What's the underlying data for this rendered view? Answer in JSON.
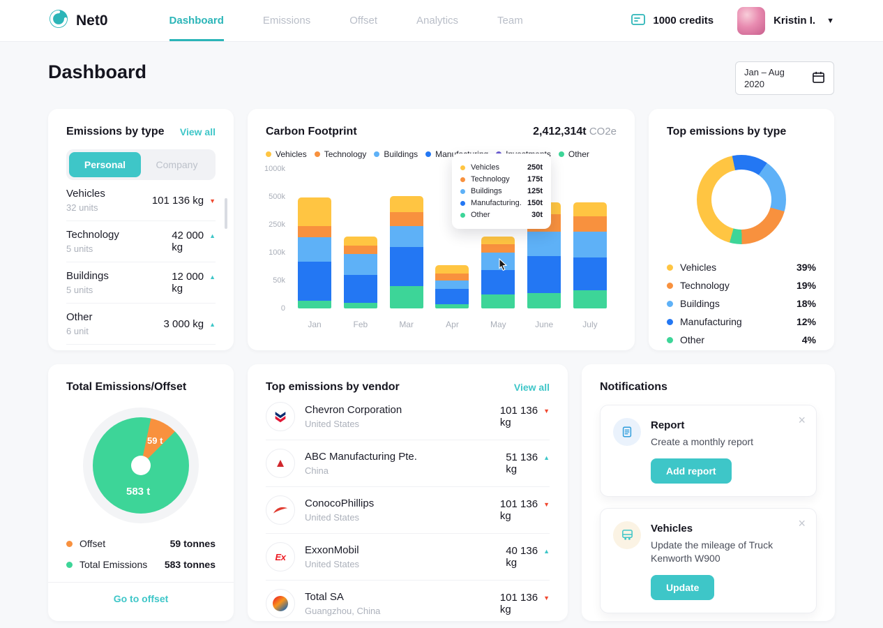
{
  "theme": {
    "accent": "#3EC6C8",
    "yellow": "#FFC542",
    "orange": "#F8913E",
    "light_blue": "#5EB1F7",
    "blue": "#2377F3",
    "green": "#3DD598",
    "red": "#F0482F"
  },
  "header": {
    "brand": "Net0",
    "nav": [
      {
        "label": "Dashboard"
      },
      {
        "label": "Emissions"
      },
      {
        "label": "Offset"
      },
      {
        "label": "Analytics"
      },
      {
        "label": "Team"
      }
    ],
    "credits": "1000 credits",
    "user_name": "Kristin I."
  },
  "page": {
    "title": "Dashboard",
    "date_line1": "Jan – Aug",
    "date_line2": "2020"
  },
  "emissions_by_type": {
    "title": "Emissions by type",
    "view_all": "View all",
    "tab_personal": "Personal",
    "tab_company": "Company",
    "rows": [
      {
        "name": "Vehicles",
        "units": "32 units",
        "value": "101 136 kg",
        "trend": "down"
      },
      {
        "name": "Technology",
        "units": "5 units",
        "value": "42 000\nkg",
        "trend": "up"
      },
      {
        "name": "Buildings",
        "units": "5 units",
        "value": "12 000\nkg",
        "trend": "up"
      },
      {
        "name": "Other",
        "units": "6 unit",
        "value": "3 000 kg",
        "trend": "up"
      }
    ]
  },
  "carbon_footprint": {
    "title": "Carbon Footprint",
    "total": "2,412,314t",
    "total_unit": "CO2e",
    "legend": [
      {
        "label": "Vehicles",
        "color": "#FFC542"
      },
      {
        "label": "Technology",
        "color": "#F8913E"
      },
      {
        "label": "Buildings",
        "color": "#5EB1F7"
      },
      {
        "label": "Manufacturing",
        "color": "#2377F3"
      },
      {
        "label": "Investments",
        "color": "#6C5DD3"
      },
      {
        "label": "Other",
        "color": "#3DD598"
      }
    ],
    "tooltip": [
      {
        "label": "Vehicles",
        "value": "250t",
        "color": "#FFC542"
      },
      {
        "label": "Technology",
        "value": "175t",
        "color": "#F8913E"
      },
      {
        "label": "Buildings",
        "value": "125t",
        "color": "#5EB1F7"
      },
      {
        "label": "Manufacturing...",
        "value": "150t",
        "color": "#2377F3"
      },
      {
        "label": "Other",
        "value": "30t",
        "color": "#3DD598"
      }
    ]
  },
  "top_emissions": {
    "title": "Top emissions by type",
    "legend": [
      {
        "label": "Vehicles",
        "pct": "39%",
        "color": "#FFC542"
      },
      {
        "label": "Technology",
        "pct": "19%",
        "color": "#F8913E"
      },
      {
        "label": "Buildings",
        "pct": "18%",
        "color": "#5EB1F7"
      },
      {
        "label": "Manufacturing",
        "pct": "12%",
        "color": "#2377F3"
      },
      {
        "label": "Other",
        "pct": "4%",
        "color": "#3DD598"
      }
    ]
  },
  "total_offset": {
    "title": "Total Emissions/Offset",
    "labels": {
      "offset": "59 t",
      "total": "583 t"
    },
    "legend": [
      {
        "label": "Offset",
        "value": "59 tonnes",
        "color": "#F8913E"
      },
      {
        "label": "Total Emissions",
        "value": "583 tonnes",
        "color": "#3DD598"
      }
    ],
    "link": "Go to offset"
  },
  "vendors": {
    "title": "Top emissions by vendor",
    "view_all": "View all",
    "rows": [
      {
        "name": "Chevron Corporation",
        "location": "United States",
        "value": "101 136\nkg",
        "trend": "down"
      },
      {
        "name": "ABC Manufacturing Pte.",
        "location": "China",
        "value": "51 136\nkg",
        "trend": "up"
      },
      {
        "name": "ConocoPhillips",
        "location": "United States",
        "value": "101 136\nkg",
        "trend": "down"
      },
      {
        "name": "ExxonMobil",
        "location": "United States",
        "value": "40 136\nkg",
        "trend": "up"
      },
      {
        "name": "Total SA",
        "location": "Guangzhou, China",
        "value": "101 136\nkg",
        "trend": "down"
      }
    ]
  },
  "notifications": {
    "title": "Notifications",
    "items": [
      {
        "title": "Report",
        "text": "Create a monthly report",
        "button": "Add report"
      },
      {
        "title": "Vehicles",
        "text": "Update the mileage of Truck Kenworth W900",
        "button": "Update"
      }
    ]
  },
  "chart_data": [
    {
      "type": "bar",
      "stacked": true,
      "title": "Carbon Footprint",
      "categories": [
        "Jan",
        "Feb",
        "Mar",
        "Apr",
        "May",
        "June",
        "July"
      ],
      "series": [
        {
          "name": "Other",
          "color": "#3DD598",
          "values": [
            14,
            10,
            40,
            8,
            25,
            28,
            33
          ]
        },
        {
          "name": "Manufacturing",
          "color": "#2377F3",
          "values": [
            70,
            50,
            90,
            27,
            44,
            66,
            58
          ]
        },
        {
          "name": "Buildings",
          "color": "#5EB1F7",
          "values": [
            98,
            38,
            113,
            15,
            31,
            119,
            122
          ]
        },
        {
          "name": "Technology",
          "color": "#F8913E",
          "values": [
            60,
            40,
            120,
            13,
            45,
            131,
            113
          ]
        },
        {
          "name": "Vehicles",
          "color": "#FFC542",
          "values": [
            250,
            48,
            150,
            15,
            41,
            106,
            125
          ]
        }
      ],
      "unit": "k",
      "y_ticks": [
        "0",
        "50k",
        "100k",
        "250k",
        "500k",
        "1000k"
      ],
      "y_tick_values": [
        0,
        50,
        100,
        250,
        500,
        1000
      ],
      "legend_position": "top"
    },
    {
      "type": "pie",
      "subtype": "donut",
      "title": "Top emissions by type",
      "labels": [
        "Vehicles",
        "Technology",
        "Buildings",
        "Manufacturing",
        "Other"
      ],
      "values": [
        39,
        19,
        18,
        12,
        4
      ],
      "colors": [
        "#FFC542",
        "#F8913E",
        "#5EB1F7",
        "#2377F3",
        "#3DD598"
      ],
      "draw_order": [
        3,
        2,
        1,
        4,
        0
      ],
      "start_angle": -12
    },
    {
      "type": "pie",
      "title": "Total Emissions/Offset",
      "labels": [
        "Offset",
        "Total Emissions"
      ],
      "values": [
        59,
        583
      ],
      "unit": "tonnes",
      "colors": [
        "#F8913E",
        "#3DD598"
      ],
      "start_angle": 12
    }
  ]
}
